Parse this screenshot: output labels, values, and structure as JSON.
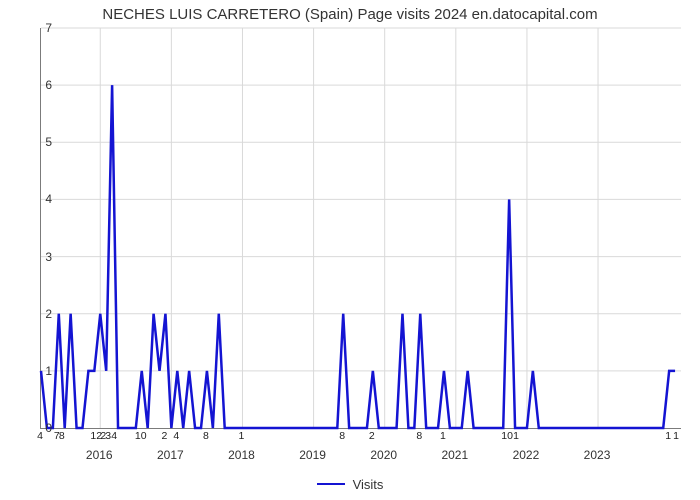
{
  "title": "NECHES LUIS CARRETERO (Spain) Page visits 2024 en.datocapital.com",
  "chart": {
    "type": "line",
    "background_color": "#ffffff",
    "grid_color": "#d9d9d9",
    "axis_color": "#7b7b7b",
    "title_fontsize": 15,
    "tick_fontsize": 12,
    "value_label_fontsize": 10.5,
    "ylim": [
      0,
      7
    ],
    "yticks": [
      0,
      1,
      2,
      3,
      4,
      5,
      6,
      7
    ],
    "xlim_index": [
      0,
      108
    ],
    "year_ticks": [
      {
        "label": "2016",
        "index": 10
      },
      {
        "label": "2017",
        "index": 22
      },
      {
        "label": "2018",
        "index": 34
      },
      {
        "label": "2019",
        "index": 46
      },
      {
        "label": "2020",
        "index": 58
      },
      {
        "label": "2021",
        "index": 70
      },
      {
        "label": "2022",
        "index": 82
      },
      {
        "label": "2023",
        "index": 94
      }
    ],
    "series": {
      "name": "Visits",
      "color": "#1414d2",
      "line_width": 2.5,
      "values": [
        1,
        0,
        0,
        2,
        0,
        2,
        0,
        0,
        1,
        1,
        2,
        1,
        6,
        0,
        0,
        0,
        0,
        1,
        0,
        2,
        1,
        2,
        0,
        1,
        0,
        1,
        0,
        0,
        1,
        0,
        2,
        0,
        0,
        0,
        0,
        0,
        0,
        0,
        0,
        0,
        0,
        0,
        0,
        0,
        0,
        0,
        0,
        0,
        0,
        0,
        0,
        2,
        0,
        0,
        0,
        0,
        1,
        0,
        0,
        0,
        0,
        2,
        0,
        0,
        2,
        0,
        0,
        0,
        1,
        0,
        0,
        0,
        1,
        0,
        0,
        0,
        0,
        0,
        0,
        4,
        0,
        0,
        0,
        1,
        0,
        0,
        0,
        0,
        0,
        0,
        0,
        0,
        0,
        0,
        0,
        0,
        0,
        0,
        0,
        0,
        0,
        0,
        0,
        0,
        0,
        0,
        1,
        1
      ]
    },
    "value_ticks": [
      {
        "label": "4",
        "index": 0
      },
      {
        "label": "7",
        "index": 3,
        "dx": -1
      },
      {
        "label": "8",
        "index": 3,
        "dx": 4
      },
      {
        "label": "12",
        "index": 10,
        "dx": -3
      },
      {
        "label": "2",
        "index": 10,
        "dx": 4
      },
      {
        "label": "3",
        "index": 11,
        "dx": 3
      },
      {
        "label": "4",
        "index": 12,
        "dx": 3
      },
      {
        "label": "10",
        "index": 17
      },
      {
        "label": "2",
        "index": 21
      },
      {
        "label": "4",
        "index": 23
      },
      {
        "label": "8",
        "index": 28
      },
      {
        "label": "1",
        "index": 34
      },
      {
        "label": "8",
        "index": 51
      },
      {
        "label": "2",
        "index": 56
      },
      {
        "label": "8",
        "index": 64
      },
      {
        "label": "1",
        "index": 68
      },
      {
        "label": "10",
        "index": 79,
        "dx": -1
      },
      {
        "label": "1",
        "index": 80,
        "dx": 2
      },
      {
        "label": "1",
        "index": 106,
        "dx": 0
      },
      {
        "label": "1",
        "index": 107,
        "dx": 2
      }
    ]
  }
}
